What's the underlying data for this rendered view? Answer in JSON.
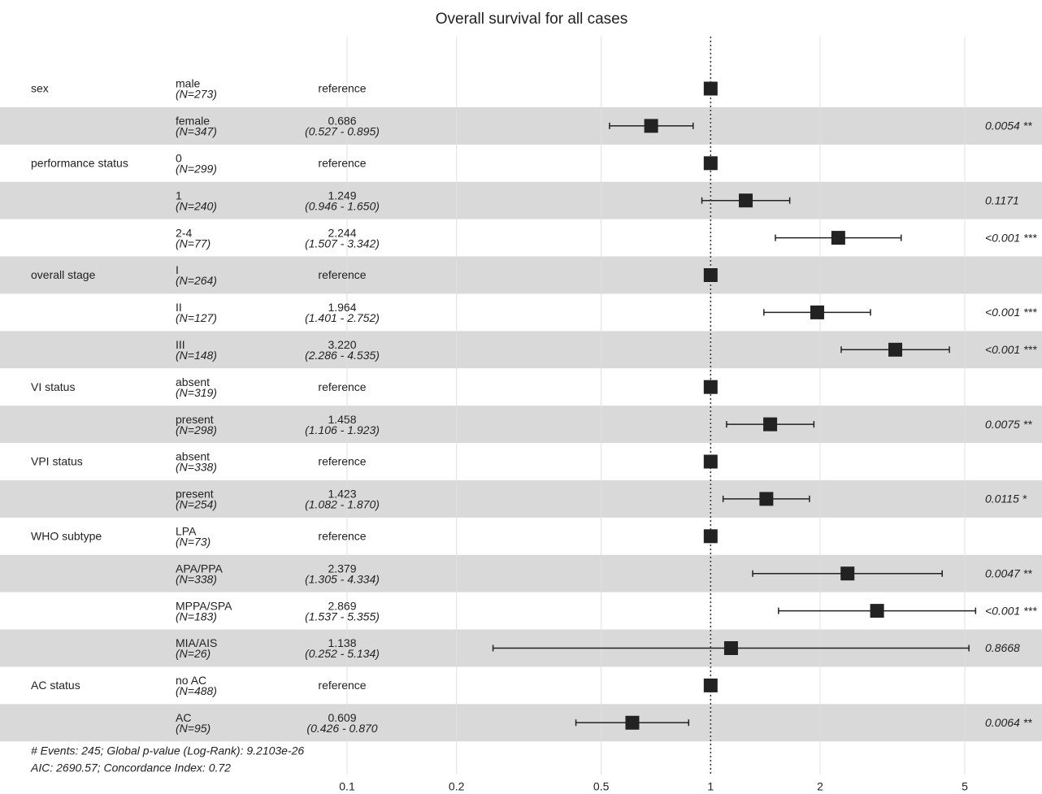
{
  "chart_data": {
    "type": "forest",
    "title": "Overall survival for all cases",
    "xscale": "log",
    "xlim": [
      0.1,
      5
    ],
    "xticks": [
      0.1,
      0.2,
      0.5,
      1,
      2,
      5
    ],
    "grid": true,
    "reference_line": 1,
    "band_color": "#d9d9d9",
    "marker_color": "#222222",
    "rows": [
      {
        "variable": "sex",
        "level": "male",
        "n": "(N=273)",
        "hr": 1,
        "hr_label": "reference"
      },
      {
        "level": "female",
        "n": "(N=347)",
        "hr": 0.686,
        "hr_label": "0.686",
        "ci_low": 0.527,
        "ci_high": 0.895,
        "ci_label": "(0.527 - 0.895)",
        "p": "0.0054 **"
      },
      {
        "variable": "performance status",
        "level": "0",
        "n": "(N=299)",
        "hr": 1,
        "hr_label": "reference"
      },
      {
        "level": "1",
        "n": "(N=240)",
        "hr": 1.249,
        "hr_label": "1.249",
        "ci_low": 0.946,
        "ci_high": 1.65,
        "ci_label": "(0.946 - 1.650)",
        "p": "0.1171"
      },
      {
        "level": "2-4",
        "n": "(N=77)",
        "hr": 2.244,
        "hr_label": "2.244",
        "ci_low": 1.507,
        "ci_high": 3.342,
        "ci_label": "(1.507 - 3.342)",
        "p": "<0.001 ***"
      },
      {
        "variable": "overall stage",
        "level": "I",
        "n": "(N=264)",
        "hr": 1,
        "hr_label": "reference"
      },
      {
        "level": "II",
        "n": "(N=127)",
        "hr": 1.964,
        "hr_label": "1.964",
        "ci_low": 1.401,
        "ci_high": 2.752,
        "ci_label": "(1.401 - 2.752)",
        "p": "<0.001 ***"
      },
      {
        "level": "III",
        "n": "(N=148)",
        "hr": 3.22,
        "hr_label": "3.220",
        "ci_low": 2.286,
        "ci_high": 4.535,
        "ci_label": "(2.286 - 4.535)",
        "p": "<0.001 ***"
      },
      {
        "variable": "VI status",
        "level": "absent",
        "n": "(N=319)",
        "hr": 1,
        "hr_label": "reference"
      },
      {
        "level": "present",
        "n": "(N=298)",
        "hr": 1.458,
        "hr_label": "1.458",
        "ci_low": 1.106,
        "ci_high": 1.923,
        "ci_label": "(1.106 - 1.923)",
        "p": "0.0075 **"
      },
      {
        "variable": "VPI status",
        "level": "absent",
        "n": "(N=338)",
        "hr": 1,
        "hr_label": "reference"
      },
      {
        "level": "present",
        "n": "(N=254)",
        "hr": 1.423,
        "hr_label": "1.423",
        "ci_low": 1.082,
        "ci_high": 1.87,
        "ci_label": "(1.082 - 1.870)",
        "p": "0.0115 *"
      },
      {
        "variable": "WHO subtype",
        "level": "LPA",
        "n": "(N=73)",
        "hr": 1,
        "hr_label": "reference"
      },
      {
        "level": "APA/PPA",
        "n": "(N=338)",
        "hr": 2.379,
        "hr_label": "2.379",
        "ci_low": 1.305,
        "ci_high": 4.334,
        "ci_label": "(1.305 - 4.334)",
        "p": "0.0047 **"
      },
      {
        "level": "MPPA/SPA",
        "n": "(N=183)",
        "hr": 2.869,
        "hr_label": "2.869",
        "ci_low": 1.537,
        "ci_high": 5.355,
        "ci_label": "(1.537 - 5.355)",
        "p": "<0.001 ***"
      },
      {
        "level": "MIA/AIS",
        "n": "(N=26)",
        "hr": 1.138,
        "hr_label": "1.138",
        "ci_low": 0.252,
        "ci_high": 5.134,
        "ci_label": "(0.252 - 5.134)",
        "p": "0.8668"
      },
      {
        "variable": "AC status",
        "level": "no AC",
        "n": "(N=488)",
        "hr": 1,
        "hr_label": "reference"
      },
      {
        "level": "AC",
        "n": "(N=95)",
        "hr": 0.609,
        "hr_label": "0.609",
        "ci_low": 0.426,
        "ci_high": 0.87,
        "ci_label": "(0.426 - 0.870",
        "p": "0.0064 **"
      }
    ],
    "footnotes": [
      "# Events: 245; Global p-value (Log-Rank): 9.2103e-26",
      "AIC: 2690.57; Concordance Index: 0.72"
    ]
  }
}
